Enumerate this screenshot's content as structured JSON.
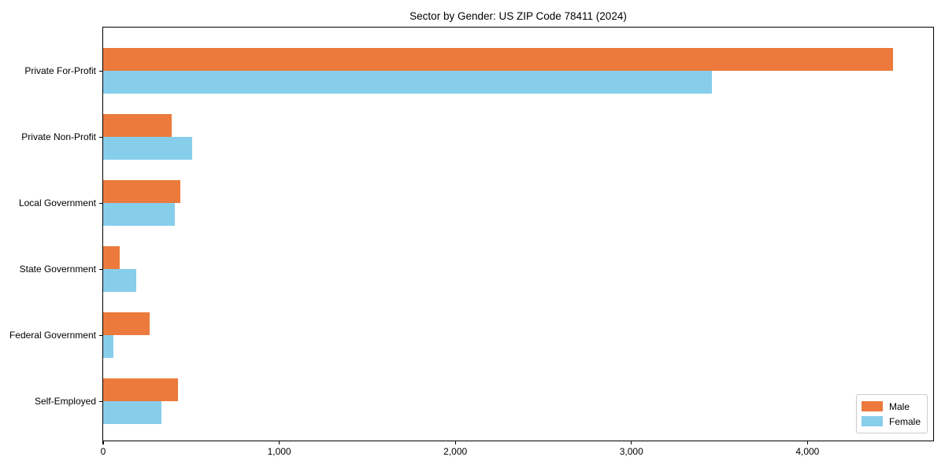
{
  "title": "Sector by Gender: US ZIP Code 78411 (2024)",
  "chart_data": {
    "type": "bar",
    "orientation": "horizontal",
    "title": "Sector by Gender: US ZIP Code 78411 (2024)",
    "categories": [
      "Private For-Profit",
      "Private Non-Profit",
      "Local Government",
      "State Government",
      "Federal Government",
      "Self-Employed"
    ],
    "series": [
      {
        "name": "Male",
        "color": "#EB7A3C",
        "values": [
          4487,
          391,
          439,
          94,
          263,
          427
        ]
      },
      {
        "name": "Female",
        "color": "#87CEEB",
        "values": [
          3455,
          506,
          406,
          189,
          59,
          332
        ]
      }
    ],
    "xlabel": "",
    "ylabel": "",
    "xlim": [
      0,
      4714
    ],
    "xticks": [
      0,
      1000,
      2000,
      3000,
      4000
    ],
    "xtick_labels": [
      "0",
      "1,000",
      "2,000",
      "3,000",
      "4,000"
    ],
    "legend_position": "lower right",
    "grid": false
  }
}
